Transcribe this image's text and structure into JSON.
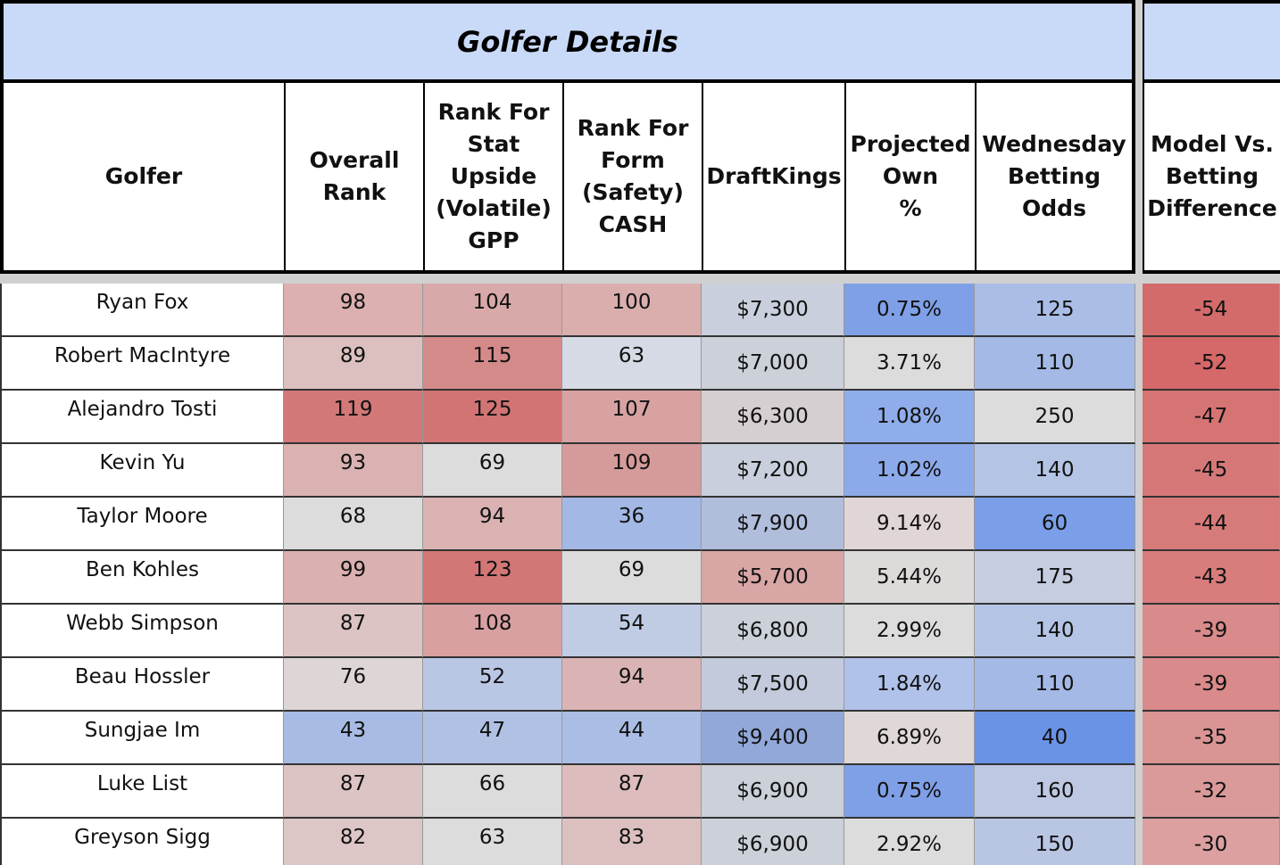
{
  "header": {
    "title": "Golfer Details"
  },
  "table": {
    "columns": [
      "Golfer",
      "Overall\nRank",
      "Rank For\nStat\nUpside\n(Volatile)\nGPP",
      "Rank For\nForm\n(Safety)\nCASH",
      "DraftKings",
      "Projected\nOwn\n%",
      "Wednesday\nBetting\nOdds",
      "Model Vs.\nBetting\nDifference"
    ],
    "rows": [
      [
        "Ryan Fox",
        98,
        104,
        100,
        "$7,300",
        "0.75%",
        125,
        -54
      ],
      [
        "Robert MacIntyre",
        89,
        115,
        63,
        "$7,000",
        "3.71%",
        110,
        -52
      ],
      [
        "Alejandro Tosti",
        119,
        125,
        107,
        "$6,300",
        "1.08%",
        250,
        -47
      ],
      [
        "Kevin Yu",
        93,
        69,
        109,
        "$7,200",
        "1.02%",
        140,
        -45
      ],
      [
        "Taylor Moore",
        68,
        94,
        36,
        "$7,900",
        "9.14%",
        60,
        -44
      ],
      [
        "Ben Kohles",
        99,
        123,
        69,
        "$5,700",
        "5.44%",
        175,
        -43
      ],
      [
        "Webb Simpson",
        87,
        108,
        54,
        "$6,800",
        "2.99%",
        140,
        -39
      ],
      [
        "Beau Hossler",
        76,
        52,
        94,
        "$7,500",
        "1.84%",
        110,
        -39
      ],
      [
        "Sungjae Im",
        43,
        47,
        44,
        "$9,400",
        "6.89%",
        40,
        -35
      ],
      [
        "Luke List",
        87,
        66,
        87,
        "$6,900",
        "0.75%",
        160,
        -32
      ],
      [
        "Greyson Sigg",
        82,
        63,
        83,
        "$6,900",
        "2.92%",
        150,
        -30
      ]
    ]
  }
}
